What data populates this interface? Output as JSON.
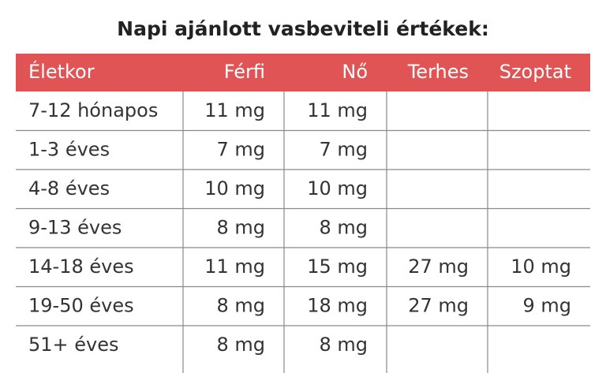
{
  "title": "Napi ajánlott vasbeviteli értékek:",
  "table": {
    "header": [
      "Életkor",
      "Férfi",
      "Nő",
      "Terhes",
      "Szoptat"
    ],
    "rows": [
      [
        "7-12 hónapos",
        "11 mg",
        "11 mg",
        null,
        null
      ],
      [
        "1-3 éves",
        "7 mg",
        "7 mg",
        null,
        null
      ],
      [
        "4-8 éves",
        "10 mg",
        "10 mg",
        null,
        null
      ],
      [
        "9-13 éves",
        "8 mg",
        "8 mg",
        null,
        null
      ],
      [
        "14-18 éves",
        "11 mg",
        "15 mg",
        "27 mg",
        "10 mg"
      ],
      [
        "19-50 éves",
        "8 mg",
        "18 mg",
        "27 mg",
        "9 mg"
      ],
      [
        "51+ éves",
        "8 mg",
        "8 mg",
        null,
        null
      ]
    ]
  }
}
